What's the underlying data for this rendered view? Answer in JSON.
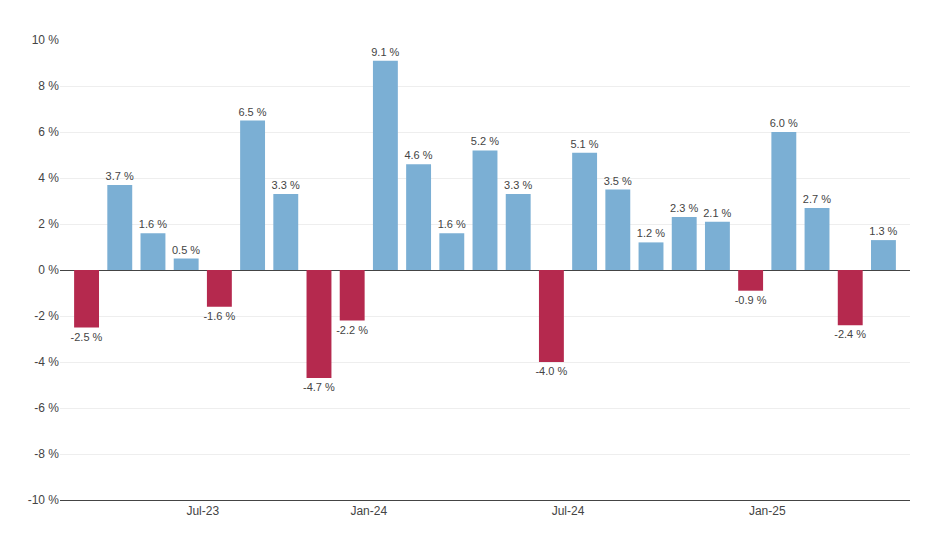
{
  "chart_data": {
    "type": "bar",
    "categories": [
      null,
      null,
      null,
      null,
      "Jul-23",
      null,
      null,
      null,
      null,
      "Jan-24",
      null,
      null,
      null,
      null,
      null,
      "Jul-24",
      null,
      null,
      null,
      null,
      null,
      "Jan-25",
      null,
      null,
      null
    ],
    "values": [
      -2.5,
      3.7,
      1.6,
      0.5,
      -1.6,
      6.5,
      3.3,
      -4.7,
      -2.2,
      9.1,
      4.6,
      1.6,
      5.2,
      3.3,
      -4.0,
      5.1,
      3.5,
      1.2,
      2.3,
      2.1,
      -0.9,
      6.0,
      2.7,
      -2.4,
      1.3
    ],
    "value_labels": [
      "-2.5 %",
      "3.7 %",
      "1.6 %",
      "0.5 %",
      "-1.6 %",
      "6.5 %",
      "3.3 %",
      "-4.7 %",
      "-2.2 %",
      "9.1 %",
      "4.6 %",
      "1.6 %",
      "5.2 %",
      "3.3 %",
      "-4.0 %",
      "5.1 %",
      "3.5 %",
      "1.2 %",
      "2.3 %",
      "2.1 %",
      "-0.9 %",
      "6.0 %",
      "2.7 %",
      "-2.4 %",
      "1.3 %"
    ],
    "colors": [
      "#B5294E",
      "#7BAFD4",
      "#7BAFD4",
      "#7BAFD4",
      "#B5294E",
      "#7BAFD4",
      "#7BAFD4",
      "#B5294E",
      "#B5294E",
      "#7BAFD4",
      "#7BAFD4",
      "#7BAFD4",
      "#7BAFD4",
      "#7BAFD4",
      "#B5294E",
      "#7BAFD4",
      "#7BAFD4",
      "#7BAFD4",
      "#7BAFD4",
      "#7BAFD4",
      "#B5294E",
      "#7BAFD4",
      "#7BAFD4",
      "#B5294E",
      "#7BAFD4"
    ],
    "ylim": [
      -10,
      10
    ],
    "yticks": [
      {
        "value": -10,
        "label": "-10 %"
      },
      {
        "value": -8,
        "label": "-8 %"
      },
      {
        "value": -6,
        "label": "-6 %"
      },
      {
        "value": -4,
        "label": "-4 %"
      },
      {
        "value": -2,
        "label": "-2 %"
      },
      {
        "value": 0,
        "label": "0 %"
      },
      {
        "value": 2,
        "label": "2 %"
      },
      {
        "value": 4,
        "label": "4 %"
      },
      {
        "value": 6,
        "label": "6 %"
      },
      {
        "value": 8,
        "label": "8 %"
      },
      {
        "value": 10,
        "label": "10 %"
      }
    ],
    "grid": true,
    "data_labels": true
  }
}
